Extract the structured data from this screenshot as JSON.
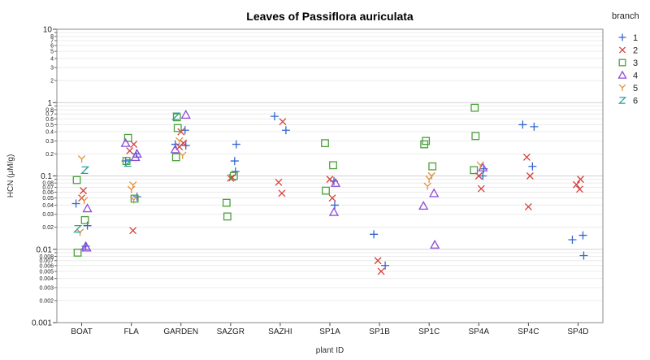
{
  "chart_data": {
    "type": "scatter",
    "title": "Leaves of Passiflora auriculata",
    "xlabel": "plant ID",
    "ylabel": "HCN (μM/g)",
    "yscale": "log",
    "ylim": [
      0.001,
      10
    ],
    "grid": true,
    "legend_title": "branch",
    "legend_position": "right",
    "categories": [
      "BOAT",
      "FLA",
      "GARDEN",
      "SAZGR",
      "SAZHI",
      "SP1A",
      "SP1B",
      "SP1C",
      "SP4A",
      "SP4C",
      "SP4D"
    ],
    "y_ticks_major": [
      {
        "value": 0.001,
        "label": "0.001"
      },
      {
        "value": 0.01,
        "label": "0.01"
      },
      {
        "value": 0.1,
        "label": "0.1"
      },
      {
        "value": 1,
        "label": "1"
      },
      {
        "value": 10,
        "label": "10"
      }
    ],
    "y_ticks_minor": [
      {
        "value": 0.002,
        "label": "0.002"
      },
      {
        "value": 0.003,
        "label": "0.003"
      },
      {
        "value": 0.004,
        "label": "0.004"
      },
      {
        "value": 0.005,
        "label": "0.005"
      },
      {
        "value": 0.006,
        "label": "0.006"
      },
      {
        "value": 0.007,
        "label": "0.007"
      },
      {
        "value": 0.008,
        "label": "0.008"
      },
      {
        "value": 0.009,
        "label": ""
      },
      {
        "value": 0.02,
        "label": "0.02"
      },
      {
        "value": 0.03,
        "label": "0.03"
      },
      {
        "value": 0.04,
        "label": "0.04"
      },
      {
        "value": 0.05,
        "label": "0.05"
      },
      {
        "value": 0.06,
        "label": "0.06"
      },
      {
        "value": 0.07,
        "label": "0.07"
      },
      {
        "value": 0.08,
        "label": "0.08"
      },
      {
        "value": 0.09,
        "label": ""
      },
      {
        "value": 0.2,
        "label": "0.2"
      },
      {
        "value": 0.3,
        "label": "0.3"
      },
      {
        "value": 0.4,
        "label": "0.4"
      },
      {
        "value": 0.5,
        "label": "0.5"
      },
      {
        "value": 0.6,
        "label": "0.6"
      },
      {
        "value": 0.7,
        "label": "0.7"
      },
      {
        "value": 0.8,
        "label": "0.8"
      },
      {
        "value": 0.9,
        "label": ""
      },
      {
        "value": 2,
        "label": "2"
      },
      {
        "value": 3,
        "label": "3"
      },
      {
        "value": 4,
        "label": "4"
      },
      {
        "value": 5,
        "label": "5"
      },
      {
        "value": 6,
        "label": "6"
      },
      {
        "value": 7,
        "label": "7"
      },
      {
        "value": 8,
        "label": "8"
      },
      {
        "value": 9,
        "label": ""
      }
    ],
    "series": [
      {
        "name": "1",
        "marker": "plus",
        "color": "#3366cc",
        "points": [
          [
            "BOAT",
            0.042
          ],
          [
            "BOAT",
            0.021
          ],
          [
            "BOAT",
            0.011
          ],
          [
            "FLA",
            0.2
          ],
          [
            "FLA",
            0.16
          ],
          [
            "FLA",
            0.052
          ],
          [
            "GARDEN",
            0.42
          ],
          [
            "GARDEN",
            0.26
          ],
          [
            "GARDEN",
            0.27
          ],
          [
            "SAZGR",
            0.27
          ],
          [
            "SAZGR",
            0.16
          ],
          [
            "SAZGR",
            0.115
          ],
          [
            "SAZHI",
            0.65
          ],
          [
            "SAZHI",
            0.42
          ],
          [
            "SP1A",
            0.085
          ],
          [
            "SP1A",
            0.04
          ],
          [
            "SP1B",
            0.016
          ],
          [
            "SP1B",
            0.006
          ],
          [
            "SP4A",
            0.1
          ],
          [
            "SP4A",
            0.125
          ],
          [
            "SP4C",
            0.5
          ],
          [
            "SP4C",
            0.47
          ],
          [
            "SP4C",
            0.135
          ],
          [
            "SP4D",
            0.0155
          ],
          [
            "SP4D",
            0.0135
          ],
          [
            "SP4D",
            0.0082
          ]
        ]
      },
      {
        "name": "2",
        "marker": "x",
        "color": "#d43f3a",
        "points": [
          [
            "BOAT",
            0.063
          ],
          [
            "BOAT",
            0.05
          ],
          [
            "FLA",
            0.27
          ],
          [
            "FLA",
            0.22
          ],
          [
            "FLA",
            0.018
          ],
          [
            "GARDEN",
            0.4
          ],
          [
            "GARDEN",
            0.28
          ],
          [
            "GARDEN",
            0.25
          ],
          [
            "SAZGR",
            0.095
          ],
          [
            "SAZGR",
            0.093
          ],
          [
            "SAZHI",
            0.55
          ],
          [
            "SAZHI",
            0.082
          ],
          [
            "SAZHI",
            0.058
          ],
          [
            "SP1A",
            0.09
          ],
          [
            "SP1A",
            0.05
          ],
          [
            "SP1B",
            0.007
          ],
          [
            "SP1B",
            0.005
          ],
          [
            "SP4A",
            0.1
          ],
          [
            "SP4A",
            0.067
          ],
          [
            "SP4C",
            0.18
          ],
          [
            "SP4C",
            0.1
          ],
          [
            "SP4C",
            0.038
          ],
          [
            "SP4D",
            0.09
          ],
          [
            "SP4D",
            0.076
          ],
          [
            "SP4D",
            0.066
          ]
        ]
      },
      {
        "name": "3",
        "marker": "square",
        "color": "#4aa13a",
        "points": [
          [
            "BOAT",
            0.088
          ],
          [
            "BOAT",
            0.025
          ],
          [
            "BOAT",
            0.009
          ],
          [
            "FLA",
            0.33
          ],
          [
            "FLA",
            0.16
          ],
          [
            "FLA",
            0.049
          ],
          [
            "GARDEN",
            0.63
          ],
          [
            "GARDEN",
            0.45
          ],
          [
            "GARDEN",
            0.18
          ],
          [
            "SAZGR",
            0.1
          ],
          [
            "SAZGR",
            0.043
          ],
          [
            "SAZGR",
            0.028
          ],
          [
            "SP1A",
            0.28
          ],
          [
            "SP1A",
            0.14
          ],
          [
            "SP1A",
            0.063
          ],
          [
            "SP1C",
            0.3
          ],
          [
            "SP1C",
            0.27
          ],
          [
            "SP1C",
            0.135
          ],
          [
            "SP4A",
            0.85
          ],
          [
            "SP4A",
            0.35
          ],
          [
            "SP4A",
            0.12
          ]
        ]
      },
      {
        "name": "4",
        "marker": "triangle",
        "color": "#8e4bd6",
        "points": [
          [
            "BOAT",
            0.036
          ],
          [
            "BOAT",
            0.011
          ],
          [
            "BOAT",
            0.0105
          ],
          [
            "FLA",
            0.28
          ],
          [
            "FLA",
            0.2
          ],
          [
            "FLA",
            0.18
          ],
          [
            "GARDEN",
            0.68
          ],
          [
            "GARDEN",
            0.23
          ],
          [
            "SP1A",
            0.08
          ],
          [
            "SP1A",
            0.032
          ],
          [
            "SP1C",
            0.058
          ],
          [
            "SP1C",
            0.039
          ],
          [
            "SP1C",
            0.0115
          ],
          [
            "SP4A",
            0.13
          ]
        ]
      },
      {
        "name": "5",
        "marker": "y",
        "color": "#e0913a",
        "points": [
          [
            "BOAT",
            0.17
          ],
          [
            "BOAT",
            0.046
          ],
          [
            "BOAT",
            0.017
          ],
          [
            "FLA",
            0.075
          ],
          [
            "FLA",
            0.065
          ],
          [
            "FLA",
            0.047
          ],
          [
            "GARDEN",
            0.3
          ],
          [
            "GARDEN",
            0.19
          ],
          [
            "SP1C",
            0.09
          ],
          [
            "SP1C",
            0.1
          ],
          [
            "SP1C",
            0.072
          ],
          [
            "SP4A",
            0.14
          ]
        ]
      },
      {
        "name": "6",
        "marker": "z",
        "color": "#2aa19a",
        "points": [
          [
            "BOAT",
            0.12
          ],
          [
            "BOAT",
            0.019
          ],
          [
            "FLA",
            0.15
          ],
          [
            "GARDEN",
            0.65
          ]
        ]
      }
    ]
  }
}
